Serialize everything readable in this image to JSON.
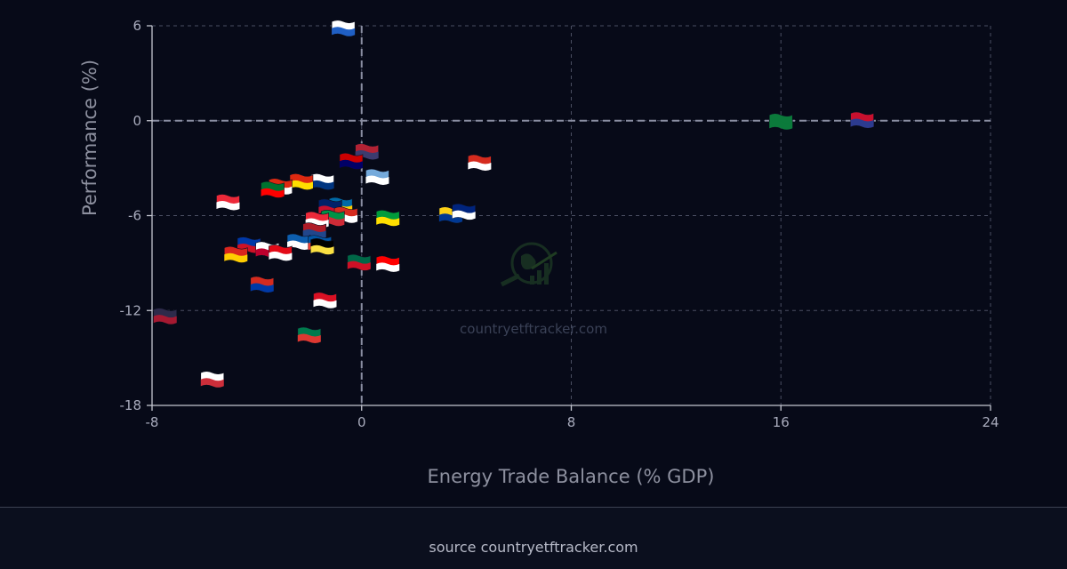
{
  "chart_data": {
    "type": "scatter",
    "title": "",
    "xlabel": "Energy Trade Balance (% GDP)",
    "ylabel": "Performance (%)",
    "xlim": [
      -8,
      24
    ],
    "ylim": [
      -18,
      6
    ],
    "xticks": [
      -8,
      0,
      8,
      16,
      24
    ],
    "yticks": [
      6,
      0,
      -6,
      -12,
      -18
    ],
    "grid": true,
    "reference_lines": {
      "x": 0,
      "y": 0
    },
    "points": [
      {
        "country": "Israel",
        "x": -0.7,
        "y": 5.9,
        "flag": "#ffffff,#1f5fc4"
      },
      {
        "country": "Saudi Arabia",
        "x": 16.0,
        "y": 0.0,
        "flag": "#0b7a3b,#0b7a3b"
      },
      {
        "country": "Norway",
        "x": 19.1,
        "y": 0.1,
        "flag": "#c8102e,#2c3b8f"
      },
      {
        "country": "United States",
        "x": 0.2,
        "y": -1.9,
        "flag": "#b22234,#3c3b6e"
      },
      {
        "country": "Malaysia",
        "x": -0.4,
        "y": -2.5,
        "flag": "#cc0001,#010066"
      },
      {
        "country": "Canada",
        "x": 4.5,
        "y": -2.6,
        "flag": "#d52b1e,#ffffff"
      },
      {
        "country": "Argentina",
        "x": 0.6,
        "y": -3.5,
        "flag": "#75aadb,#ffffff"
      },
      {
        "country": "Finland",
        "x": -1.5,
        "y": -3.8,
        "flag": "#ffffff,#003580"
      },
      {
        "country": "China",
        "x": -2.3,
        "y": -3.8,
        "flag": "#de2910,#ffde00"
      },
      {
        "country": "Hong Kong",
        "x": -3.1,
        "y": -4.1,
        "flag": "#de2910,#ffffff"
      },
      {
        "country": "UAE",
        "x": -3.4,
        "y": -4.3,
        "flag": "#00732f,#ff0000"
      },
      {
        "country": "Singapore",
        "x": -5.1,
        "y": -5.1,
        "flag": "#ed2939,#ffffff"
      },
      {
        "country": "Sweden",
        "x": -0.8,
        "y": -5.3,
        "flag": "#006aa7,#fecc00"
      },
      {
        "country": "Great Britain",
        "x": -1.2,
        "y": -5.4,
        "flag": "#012169,#c8102e"
      },
      {
        "country": "Switzerland",
        "x": -0.6,
        "y": -5.9,
        "flag": "#d52b1e,#ffffff"
      },
      {
        "country": "Italy",
        "x": -1.1,
        "y": -6.1,
        "flag": "#009246,#ce2b37"
      },
      {
        "country": "Austria",
        "x": -1.7,
        "y": -6.2,
        "flag": "#ed2939,#ffffff"
      },
      {
        "country": "Brazil",
        "x": 1.0,
        "y": -6.1,
        "flag": "#009c3b,#ffdf00"
      },
      {
        "country": "Colombia",
        "x": 3.4,
        "y": -5.9,
        "flag": "#fcd116,#003893"
      },
      {
        "country": "Australia",
        "x": 3.9,
        "y": -5.7,
        "flag": "#00247d,#ffffff"
      },
      {
        "country": "Netherlands",
        "x": -1.8,
        "y": -6.9,
        "flag": "#ae1c28,#21468b"
      },
      {
        "country": "Greece",
        "x": -2.4,
        "y": -7.6,
        "flag": "#0d5eaf,#ffffff"
      },
      {
        "country": "France",
        "x": -1.6,
        "y": -7.7,
        "flag": "#0055a4,#ef4135"
      },
      {
        "country": "Belgium",
        "x": -1.5,
        "y": -7.9,
        "flag": "#000000,#fae042"
      },
      {
        "country": "Philippines",
        "x": -4.3,
        "y": -7.8,
        "flag": "#0038a8,#ce1126"
      },
      {
        "country": "Japan",
        "x": -3.6,
        "y": -8.1,
        "flag": "#ffffff,#bc002d"
      },
      {
        "country": "Turkey",
        "x": -3.1,
        "y": -8.3,
        "flag": "#e30a17,#ffffff"
      },
      {
        "country": "Vietnam",
        "x": -4.8,
        "y": -8.4,
        "flag": "#da251d,#ffcd00"
      },
      {
        "country": "Mexico",
        "x": -0.1,
        "y": -8.9,
        "flag": "#006847,#ce1126"
      },
      {
        "country": "Indonesia",
        "x": 1.0,
        "y": -9.0,
        "flag": "#ff0000,#ffffff"
      },
      {
        "country": "Chile",
        "x": -3.8,
        "y": -10.3,
        "flag": "#d52b1e,#0039a6"
      },
      {
        "country": "Peru",
        "x": -1.4,
        "y": -11.3,
        "flag": "#d91023,#ffffff"
      },
      {
        "country": "Thailand",
        "x": -7.5,
        "y": -12.3,
        "flag": "#2d2a4a,#a51931"
      },
      {
        "country": "South Africa",
        "x": -2.0,
        "y": -13.5,
        "flag": "#007a4d,#de3831"
      },
      {
        "country": "South Korea",
        "x": -5.7,
        "y": -16.3,
        "flag": "#ffffff,#cd2e3a"
      }
    ],
    "watermark": "countryetftracker.com"
  },
  "footer": {
    "source_text": "source countryetftracker.com"
  }
}
